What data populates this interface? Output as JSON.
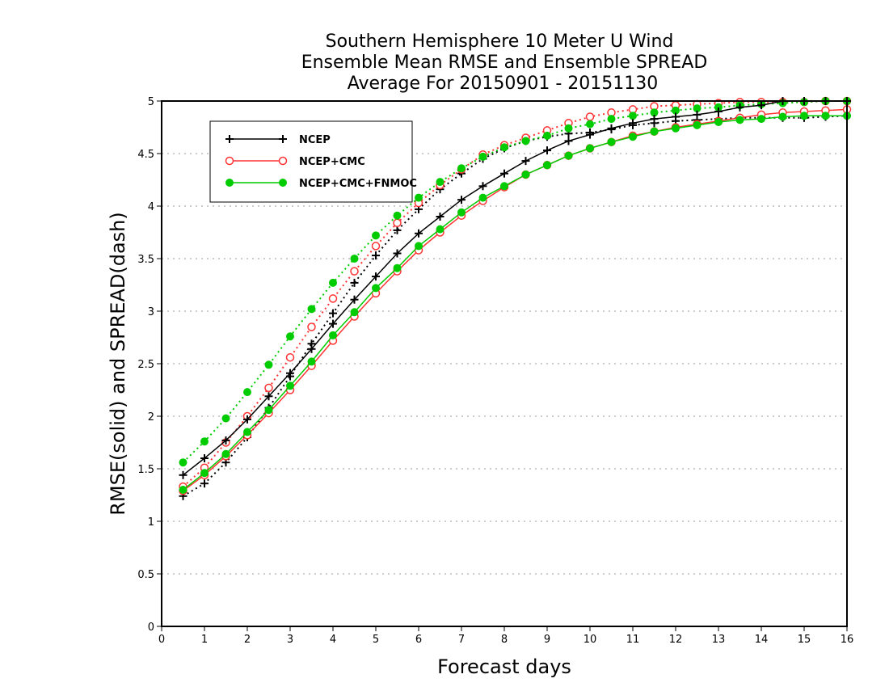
{
  "chart_data": {
    "type": "line",
    "title_lines": [
      "Southern Hemisphere 10 Meter U Wind",
      "Ensemble Mean RMSE and Ensemble SPREAD",
      "Average For 20150901 - 20151130"
    ],
    "xlabel": "Forecast days",
    "ylabel": "RMSE(solid) and SPREAD(dash)",
    "xlim": [
      0,
      16
    ],
    "ylim": [
      0,
      5
    ],
    "x_ticks": [
      0,
      1,
      2,
      3,
      4,
      5,
      6,
      7,
      8,
      9,
      10,
      11,
      12,
      13,
      14,
      15,
      16
    ],
    "y_ticks": [
      0,
      0.5,
      1,
      1.5,
      2,
      2.5,
      3,
      3.5,
      4,
      4.5,
      5
    ],
    "x_tick_labels": [
      "0",
      "1",
      "2",
      "3",
      "4",
      "5",
      "6",
      "7",
      "8",
      "9",
      "10",
      "11",
      "12",
      "13",
      "14",
      "15",
      "16"
    ],
    "y_tick_labels": [
      "0",
      "0.5",
      "1",
      "1.5",
      "2",
      "2.5",
      "3",
      "3.5",
      "4",
      "4.5",
      "5"
    ],
    "grid": "horizontal dotted",
    "legend": {
      "placement": "top-left",
      "entries": [
        {
          "name": "NCEP",
          "color": "#000000",
          "marker": "plus"
        },
        {
          "name": "NCEP+CMC",
          "color": "#ff3333",
          "marker": "open-circle"
        },
        {
          "name": "NCEP+CMC+FNMOC",
          "color": "#00cc00",
          "marker": "filled-circle"
        }
      ]
    },
    "x": [
      0.5,
      1,
      1.5,
      2,
      2.5,
      3,
      3.5,
      4,
      4.5,
      5,
      5.5,
      6,
      6.5,
      7,
      7.5,
      8,
      8.5,
      9,
      9.5,
      10,
      10.5,
      11,
      11.5,
      12,
      12.5,
      13,
      13.5,
      14,
      14.5,
      15,
      15.5,
      16
    ],
    "series": [
      {
        "name": "NCEP",
        "style": "solid",
        "color": "#000000",
        "marker": "plus",
        "values": [
          1.44,
          1.6,
          1.77,
          1.97,
          2.19,
          2.41,
          2.64,
          2.88,
          3.11,
          3.33,
          3.55,
          3.74,
          3.9,
          4.06,
          4.19,
          4.31,
          4.43,
          4.53,
          4.62,
          4.68,
          4.74,
          4.79,
          4.83,
          4.85,
          4.87,
          4.9,
          4.94,
          4.96,
          5.0,
          5.0,
          5.0,
          5.0
        ]
      },
      {
        "name": "NCEP+CMC",
        "style": "solid",
        "color": "#ff3333",
        "marker": "open-circle",
        "values": [
          1.29,
          1.44,
          1.62,
          1.82,
          2.03,
          2.25,
          2.48,
          2.72,
          2.95,
          3.17,
          3.38,
          3.58,
          3.75,
          3.91,
          4.05,
          4.18,
          4.3,
          4.39,
          4.48,
          4.55,
          4.61,
          4.67,
          4.71,
          4.75,
          4.78,
          4.81,
          4.84,
          4.87,
          4.89,
          4.9,
          4.91,
          4.92
        ]
      },
      {
        "name": "NCEP+CMC+FNMOC",
        "style": "solid",
        "color": "#00cc00",
        "marker": "filled-circle",
        "values": [
          1.3,
          1.46,
          1.64,
          1.85,
          2.06,
          2.29,
          2.52,
          2.77,
          2.99,
          3.22,
          3.41,
          3.62,
          3.78,
          3.94,
          4.08,
          4.19,
          4.3,
          4.39,
          4.48,
          4.55,
          4.61,
          4.66,
          4.71,
          4.74,
          4.77,
          4.8,
          4.82,
          4.83,
          4.85,
          4.86,
          4.86,
          4.86
        ]
      },
      {
        "name": "NCEP",
        "style": "dotted",
        "color": "#000000",
        "marker": "plus",
        "values": [
          1.24,
          1.36,
          1.56,
          1.8,
          2.08,
          2.38,
          2.69,
          2.98,
          3.27,
          3.53,
          3.77,
          3.97,
          4.16,
          4.31,
          4.45,
          4.55,
          4.62,
          4.66,
          4.69,
          4.7,
          4.73,
          4.77,
          4.79,
          4.81,
          4.82,
          4.83,
          4.84,
          4.84,
          4.84,
          4.84,
          4.85,
          4.86
        ]
      },
      {
        "name": "NCEP+CMC",
        "style": "dotted",
        "color": "#ff3333",
        "marker": "open-circle",
        "values": [
          1.33,
          1.51,
          1.75,
          2.0,
          2.27,
          2.56,
          2.85,
          3.12,
          3.38,
          3.62,
          3.84,
          4.03,
          4.2,
          4.35,
          4.49,
          4.58,
          4.65,
          4.72,
          4.79,
          4.85,
          4.89,
          4.92,
          4.95,
          4.96,
          4.97,
          4.98,
          4.99,
          4.99,
          4.99,
          4.99,
          5.0,
          5.0
        ]
      },
      {
        "name": "NCEP+CMC+FNMOC",
        "style": "dotted",
        "color": "#00cc00",
        "marker": "filled-circle",
        "values": [
          1.56,
          1.76,
          1.98,
          2.23,
          2.49,
          2.76,
          3.02,
          3.27,
          3.5,
          3.72,
          3.91,
          4.08,
          4.23,
          4.36,
          4.47,
          4.56,
          4.62,
          4.67,
          4.74,
          4.78,
          4.83,
          4.86,
          4.89,
          4.91,
          4.93,
          4.94,
          4.96,
          4.97,
          4.98,
          4.99,
          5.0,
          5.0
        ]
      }
    ]
  }
}
